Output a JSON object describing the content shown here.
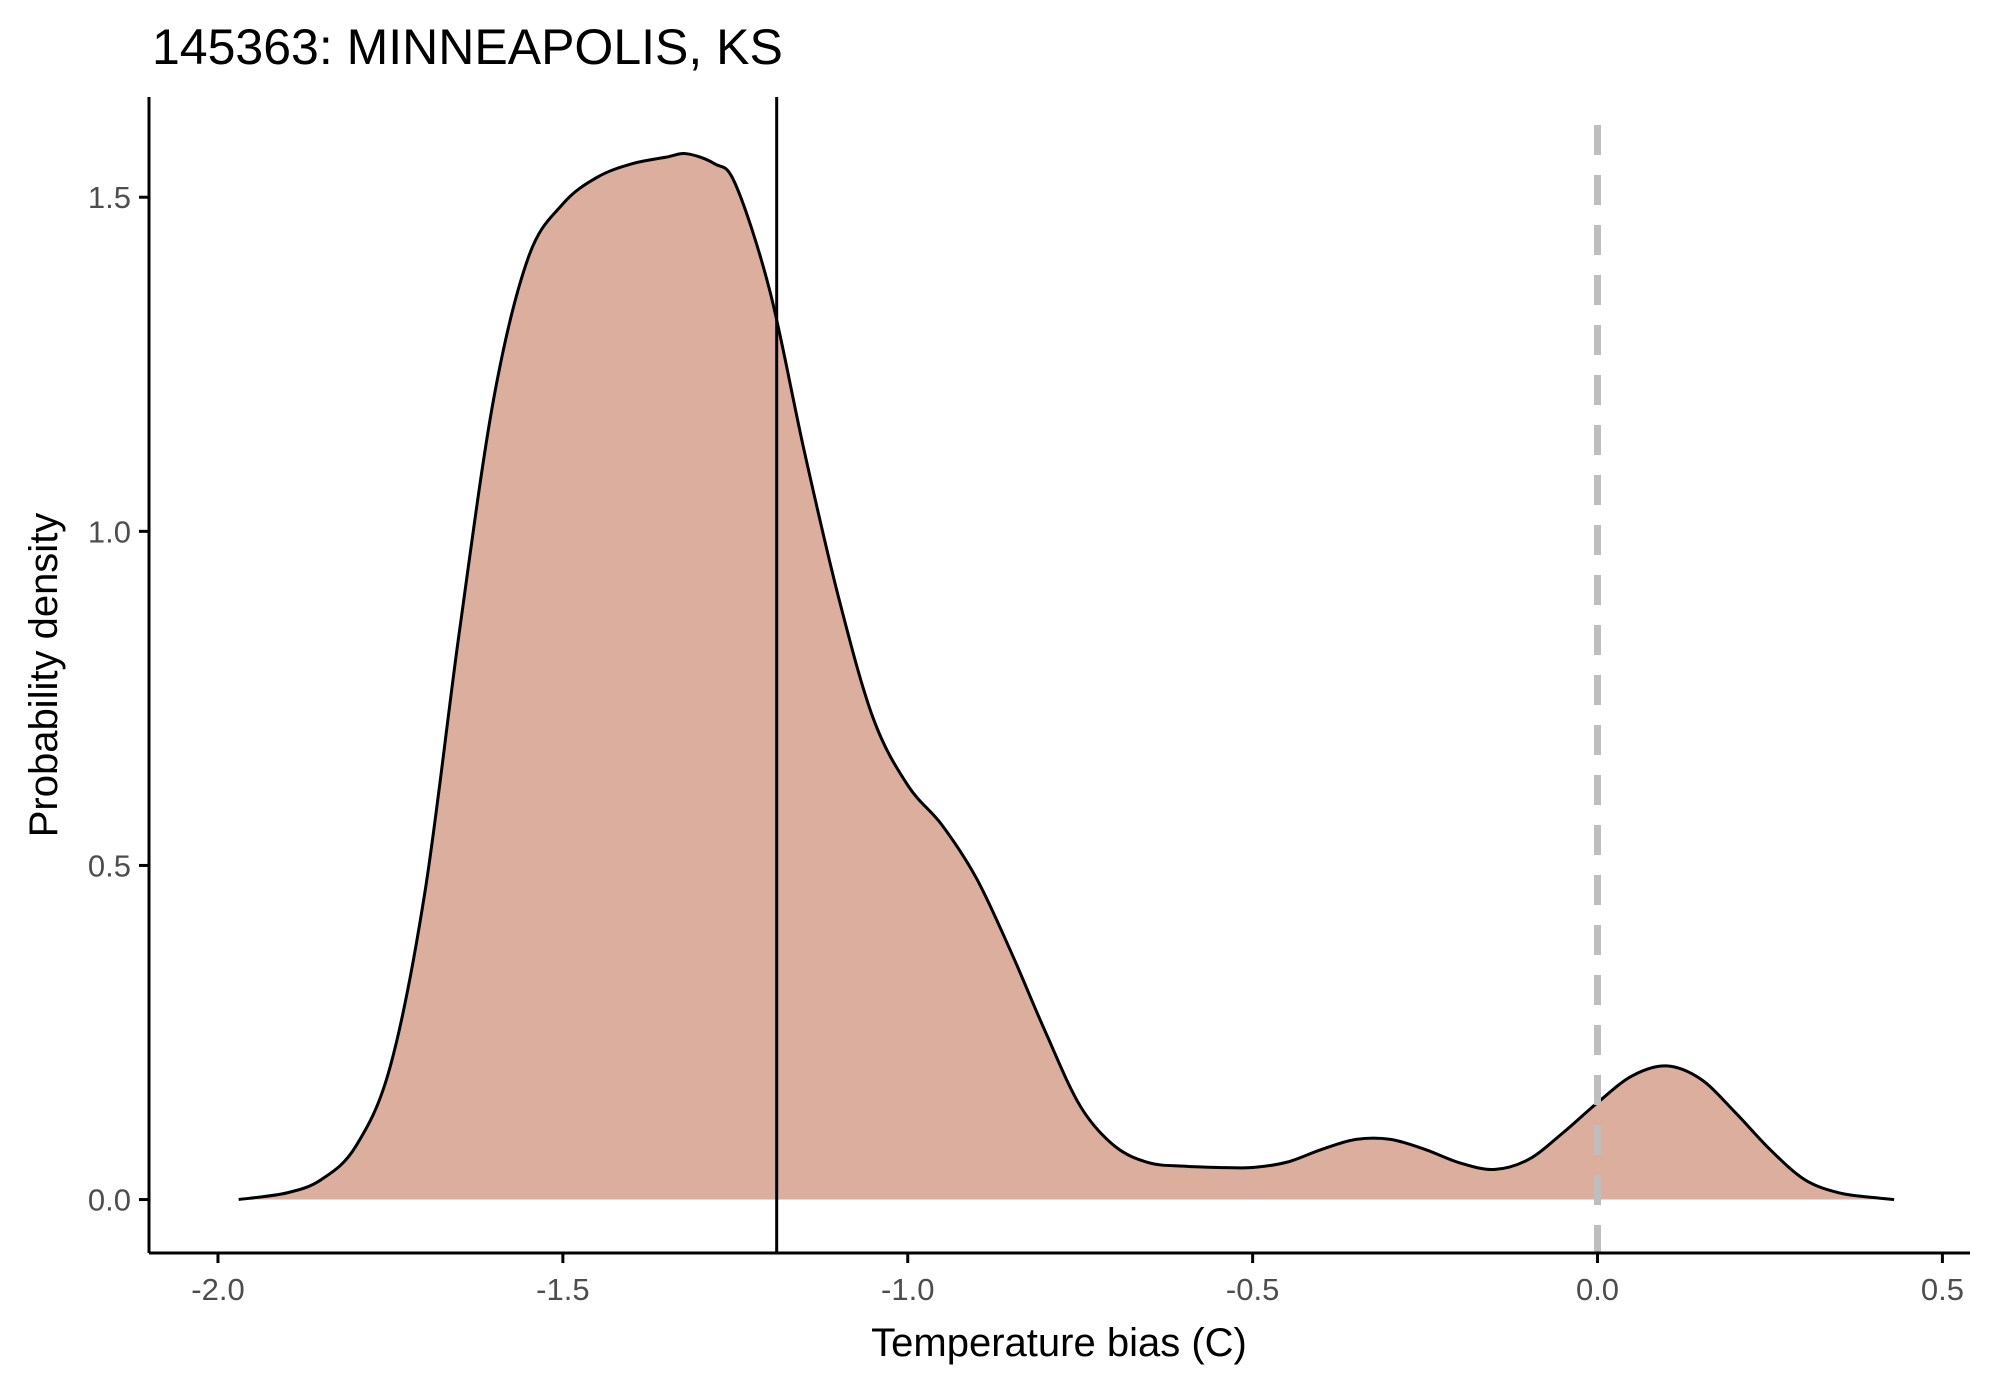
{
  "chart_data": {
    "type": "area",
    "title": "145363: MINNEAPOLIS, KS",
    "xlabel": "Temperature bias (C)",
    "ylabel": "Probability density",
    "xlim": [
      -2.1,
      0.54
    ],
    "ylim": [
      -0.08,
      1.65
    ],
    "x_ticks": [
      -2.0,
      -1.5,
      -1.0,
      -0.5,
      0.0,
      0.5
    ],
    "x_tick_labels": [
      "-2.0",
      "-1.5",
      "-1.0",
      "-0.5",
      "0.0",
      "0.5"
    ],
    "y_ticks": [
      0.0,
      0.5,
      1.0,
      1.5
    ],
    "y_tick_labels": [
      "0.0",
      "0.5",
      "1.0",
      "1.5"
    ],
    "grid": false,
    "fill_color": "#dcae9e",
    "line_color": "#000000",
    "reference_lines": [
      {
        "x": -1.19,
        "style": "solid",
        "color": "#000000"
      },
      {
        "x": 0.0,
        "style": "dashed",
        "color": "#bebebe"
      }
    ],
    "series": [
      {
        "x": [
          -1.97,
          -1.9,
          -1.85,
          -1.8,
          -1.75,
          -1.7,
          -1.65,
          -1.6,
          -1.55,
          -1.5,
          -1.45,
          -1.4,
          -1.35,
          -1.32,
          -1.28,
          -1.25,
          -1.2,
          -1.15,
          -1.1,
          -1.05,
          -1.0,
          -0.95,
          -0.9,
          -0.85,
          -0.8,
          -0.75,
          -0.7,
          -0.65,
          -0.6,
          -0.55,
          -0.5,
          -0.45,
          -0.4,
          -0.35,
          -0.3,
          -0.25,
          -0.2,
          -0.15,
          -0.1,
          -0.05,
          0.0,
          0.05,
          0.1,
          0.15,
          0.2,
          0.25,
          0.3,
          0.35,
          0.4,
          0.43
        ],
        "y": [
          0.0,
          0.01,
          0.03,
          0.08,
          0.2,
          0.46,
          0.85,
          1.2,
          1.41,
          1.49,
          1.53,
          1.55,
          1.56,
          1.565,
          1.55,
          1.52,
          1.36,
          1.12,
          0.9,
          0.72,
          0.62,
          0.56,
          0.48,
          0.37,
          0.25,
          0.14,
          0.08,
          0.055,
          0.05,
          0.048,
          0.048,
          0.056,
          0.075,
          0.09,
          0.09,
          0.075,
          0.055,
          0.045,
          0.06,
          0.1,
          0.145,
          0.185,
          0.2,
          0.18,
          0.13,
          0.075,
          0.03,
          0.01,
          0.003,
          0.0
        ]
      }
    ]
  }
}
